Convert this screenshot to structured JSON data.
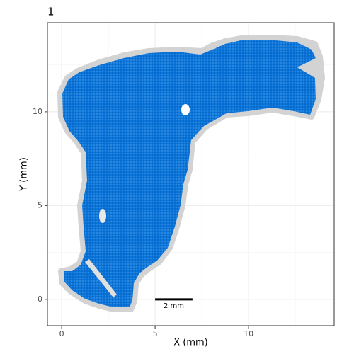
{
  "chart_data": {
    "type": "spatial",
    "title": "1",
    "x_label": "X (mm)",
    "y_label": "Y (mm)",
    "xlim": [
      -0.76,
      14.58
    ],
    "ylim": [
      -1.4,
      14.75
    ],
    "xticks": [
      0,
      5,
      10
    ],
    "yticks": [
      0,
      5,
      10
    ],
    "minor_xticks": [
      2.5,
      7.5,
      12.5
    ],
    "minor_yticks": [
      2.5,
      7.5,
      12.5
    ],
    "grid": true,
    "color": "#0a74d8",
    "scale_bar": {
      "start": 5,
      "length": 2,
      "y": 0,
      "label": "2 mm"
    }
  }
}
